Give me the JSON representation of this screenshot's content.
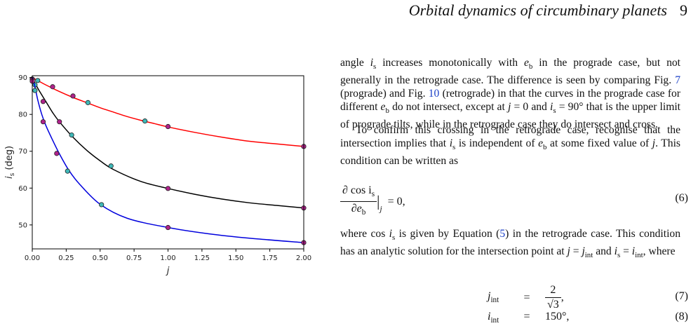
{
  "header": {
    "title": "Orbital dynamics of circumbinary planets",
    "page_number": "9"
  },
  "body": {
    "p1": [
      {
        "t": "angle "
      },
      {
        "t": "i",
        "i": 1
      },
      {
        "t": "s",
        "sub": 1
      },
      {
        "t": " increases monotonically with "
      },
      {
        "t": "e",
        "i": 1
      },
      {
        "t": "b",
        "sub": 1
      },
      {
        "t": " in the prograde case, but not generally in the retrograde case. The difference is seen by comparing Fig. "
      },
      {
        "t": "7",
        "cite": 1
      },
      {
        "t": " (prograde) and Fig. "
      },
      {
        "t": "10",
        "cite": 1
      },
      {
        "t": " (retrograde) in that the curves in the prograde case for different "
      },
      {
        "t": "e",
        "i": 1
      },
      {
        "t": "b",
        "sub": 1
      },
      {
        "t": " do not intersect, except at "
      },
      {
        "t": "j",
        "i": 1
      },
      {
        "t": " = 0 and "
      },
      {
        "t": "i",
        "i": 1
      },
      {
        "t": "s",
        "sub": 1
      },
      {
        "t": " = 90° that is the upper limit of prograde tilts, while in the retrograde case they do intersect and cross."
      }
    ],
    "p2": [
      {
        "t": "To confirm this crossing in the retrograde case, recognise that the intersection implies that "
      },
      {
        "t": "i",
        "i": 1
      },
      {
        "t": "s",
        "sub": 1
      },
      {
        "t": " is independent of "
      },
      {
        "t": "e",
        "i": 1
      },
      {
        "t": "b",
        "sub": 1
      },
      {
        "t": " at some fixed value of "
      },
      {
        "t": "j",
        "i": 1
      },
      {
        "t": ". This condition can be written as"
      }
    ],
    "p3": [
      {
        "t": "where cos "
      },
      {
        "t": "i",
        "i": 1
      },
      {
        "t": "s",
        "sub": 1
      },
      {
        "t": " is given by Equation ("
      },
      {
        "t": "5",
        "cite": 1
      },
      {
        "t": ") in the retrograde case. This condition has an analytic solution for the intersection point at "
      },
      {
        "t": "j",
        "i": 1
      },
      {
        "t": " = "
      },
      {
        "t": "j",
        "i": 1
      },
      {
        "t": "int",
        "sub": 1
      },
      {
        "t": " and "
      },
      {
        "t": "i",
        "i": 1
      },
      {
        "t": "s",
        "sub": 1
      },
      {
        "t": " = "
      },
      {
        "t": "i",
        "i": 1
      },
      {
        "t": "int",
        "sub": 1
      },
      {
        "t": ", where"
      }
    ]
  },
  "equations": {
    "eq6": {
      "number": "(6)",
      "num": "∂ cos i",
      "num_sub": "s",
      "den": "∂e",
      "den_sub": "b",
      "eval_sub": "j",
      "rhs": "= 0,"
    },
    "eq7": {
      "number": "(7)",
      "lhs": "j",
      "lhs_sub": "int",
      "eq": "=",
      "num": "2",
      "den": "√3",
      "tail": ","
    },
    "eq8": {
      "number": "(8)",
      "lhs": "i",
      "lhs_sub": "int",
      "eq": "=",
      "rhs": "150°,"
    }
  },
  "chart_data": {
    "type": "line",
    "title": "",
    "xlabel": "j",
    "ylabel": "i",
    "ylabel_sub": "s",
    "ylabel_tail": " (deg)",
    "xlim": [
      0,
      2.0
    ],
    "ylim": [
      43.5,
      90.5
    ],
    "xticks": [
      "0.00",
      "0.25",
      "0.50",
      "0.75",
      "1.00",
      "1.25",
      "1.50",
      "1.75",
      "2.00"
    ],
    "xtick_values": [
      0,
      0.25,
      0.5,
      0.75,
      1.0,
      1.25,
      1.5,
      1.75,
      2.0
    ],
    "yticks": [
      "50",
      "60",
      "70",
      "80",
      "90"
    ],
    "ytick_values": [
      50,
      60,
      70,
      80,
      90
    ],
    "grid": false,
    "series": [
      {
        "color": "#ff0000",
        "x": [
          0,
          0.05,
          0.1,
          0.2,
          0.3,
          0.4,
          0.5,
          0.6,
          0.7,
          0.8,
          0.9,
          1.0,
          1.2,
          1.4,
          1.6,
          1.8,
          2.0
        ],
        "y": [
          90,
          89.0,
          88.0,
          86.2,
          84.6,
          83.2,
          81.8,
          80.6,
          79.4,
          78.4,
          77.5,
          76.6,
          75.1,
          73.8,
          72.7,
          72.0,
          71.3
        ],
        "markers": [
          {
            "x": 0.0,
            "y": 89.6,
            "c": "#b0228c"
          },
          {
            "x": 0.04,
            "y": 89.2,
            "c": "#3fb8b8"
          },
          {
            "x": 0.15,
            "y": 87.5,
            "c": "#b0228c"
          },
          {
            "x": 0.3,
            "y": 85.0,
            "c": "#b0228c"
          },
          {
            "x": 0.41,
            "y": 83.2,
            "c": "#3fb8b8"
          },
          {
            "x": 0.83,
            "y": 78.2,
            "c": "#3fb8b8"
          },
          {
            "x": 1.0,
            "y": 76.7,
            "c": "#b0228c"
          },
          {
            "x": 2.0,
            "y": 71.3,
            "c": "#b0228c"
          }
        ]
      },
      {
        "color": "#000000",
        "x": [
          0,
          0.02,
          0.05,
          0.1,
          0.15,
          0.2,
          0.3,
          0.4,
          0.5,
          0.6,
          0.8,
          1.0,
          1.2,
          1.4,
          1.6,
          1.8,
          2.0
        ],
        "y": [
          90,
          88.5,
          86.5,
          83.5,
          80.5,
          78.0,
          73.8,
          70.3,
          67.4,
          65.0,
          61.8,
          59.9,
          58.3,
          57.0,
          56.0,
          55.3,
          54.6
        ],
        "markers": [
          {
            "x": 0.0,
            "y": 89.4,
            "c": "#b0228c"
          },
          {
            "x": 0.02,
            "y": 88.0,
            "c": "#3fb8b8"
          },
          {
            "x": 0.08,
            "y": 83.5,
            "c": "#b0228c"
          },
          {
            "x": 0.2,
            "y": 78.0,
            "c": "#b0228c"
          },
          {
            "x": 0.29,
            "y": 74.4,
            "c": "#3fb8b8"
          },
          {
            "x": 0.58,
            "y": 66.0,
            "c": "#3fb8b8"
          },
          {
            "x": 1.0,
            "y": 59.9,
            "c": "#b0228c"
          },
          {
            "x": 2.0,
            "y": 54.6,
            "c": "#b0228c"
          }
        ]
      },
      {
        "color": "#0000dd",
        "x": [
          0,
          0.02,
          0.04,
          0.07,
          0.1,
          0.15,
          0.2,
          0.27,
          0.35,
          0.5,
          0.7,
          1.0,
          1.3,
          1.6,
          2.0
        ],
        "y": [
          90,
          87.5,
          84.0,
          80.0,
          77.0,
          73.0,
          69.3,
          64.8,
          61.0,
          55.6,
          51.8,
          49.3,
          47.6,
          46.4,
          45.2
        ],
        "markers": [
          {
            "x": 0.0,
            "y": 89.0,
            "c": "#b0228c"
          },
          {
            "x": 0.02,
            "y": 86.5,
            "c": "#3fb8b8"
          },
          {
            "x": 0.08,
            "y": 78.0,
            "c": "#b0228c"
          },
          {
            "x": 0.18,
            "y": 69.4,
            "c": "#b0228c"
          },
          {
            "x": 0.26,
            "y": 64.6,
            "c": "#3fb8b8"
          },
          {
            "x": 0.51,
            "y": 55.5,
            "c": "#3fb8b8"
          },
          {
            "x": 1.0,
            "y": 49.3,
            "c": "#b0228c"
          },
          {
            "x": 2.0,
            "y": 45.2,
            "c": "#b0228c"
          }
        ]
      }
    ]
  }
}
